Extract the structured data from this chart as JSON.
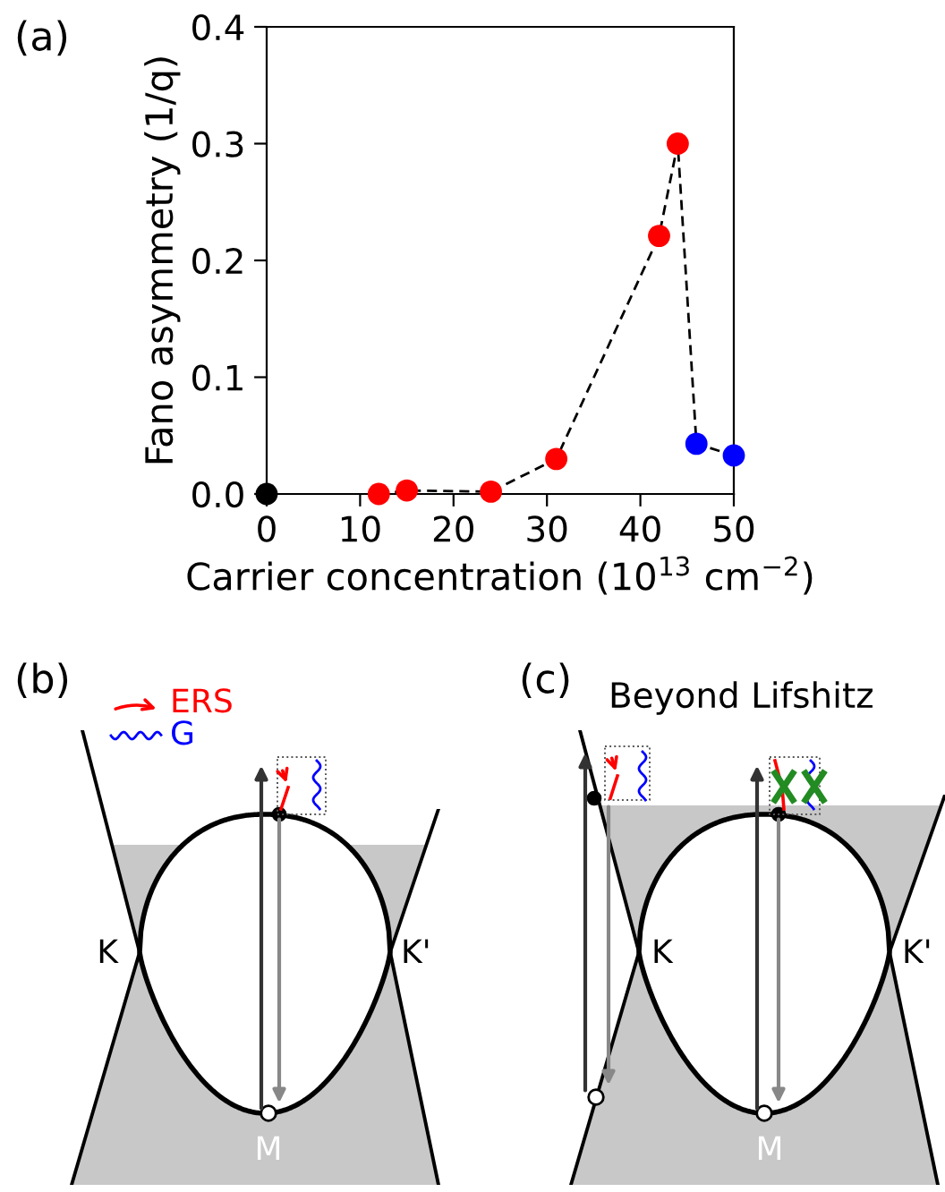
{
  "chart_data": [
    {
      "type": "line",
      "title": "(a)",
      "xlabel": "Carrier concentration (10$^{13}$ cm$^{−2}$)",
      "ylabel": "Fano asymmetry (1/q)",
      "xlim": [
        0,
        50
      ],
      "xticks": [
        0,
        10,
        20,
        30,
        40,
        50
      ],
      "ylim": [
        0,
        0.4
      ],
      "yticks": [
        {
          "value": 0,
          "label": "0.0"
        },
        0.1,
        0.2,
        0.3,
        0.4
      ],
      "series": [
        {
          "x": [
            12,
            15,
            24,
            31,
            42,
            44,
            46,
            50
          ],
          "values": [
            0.0,
            0.003,
            0.002,
            0.03,
            0.221,
            0.3,
            0.043,
            0.033
          ],
          "color": "#000000",
          "colors": [
            "#ff0000",
            "#ff0000",
            "#ff0000",
            "#ff0000",
            "#ff0000",
            "#ff0000",
            "#0000ff",
            "#0000ff"
          ],
          "marker": "circle",
          "line_style": "dashed"
        },
        {
          "type": "scatter",
          "x": [
            0
          ],
          "values": [
            0.0
          ],
          "color": "#000000",
          "marker": "circle"
        }
      ]
    },
    {
      "type": "other",
      "title": "(b)",
      "annotations": [
        "ERS",
        "G",
        "K",
        "K'",
        "M"
      ]
    },
    {
      "type": "other",
      "title": "(c)",
      "subtitle": "Beyond Lifshitz",
      "annotations": [
        "K",
        "K'",
        "M"
      ]
    }
  ]
}
